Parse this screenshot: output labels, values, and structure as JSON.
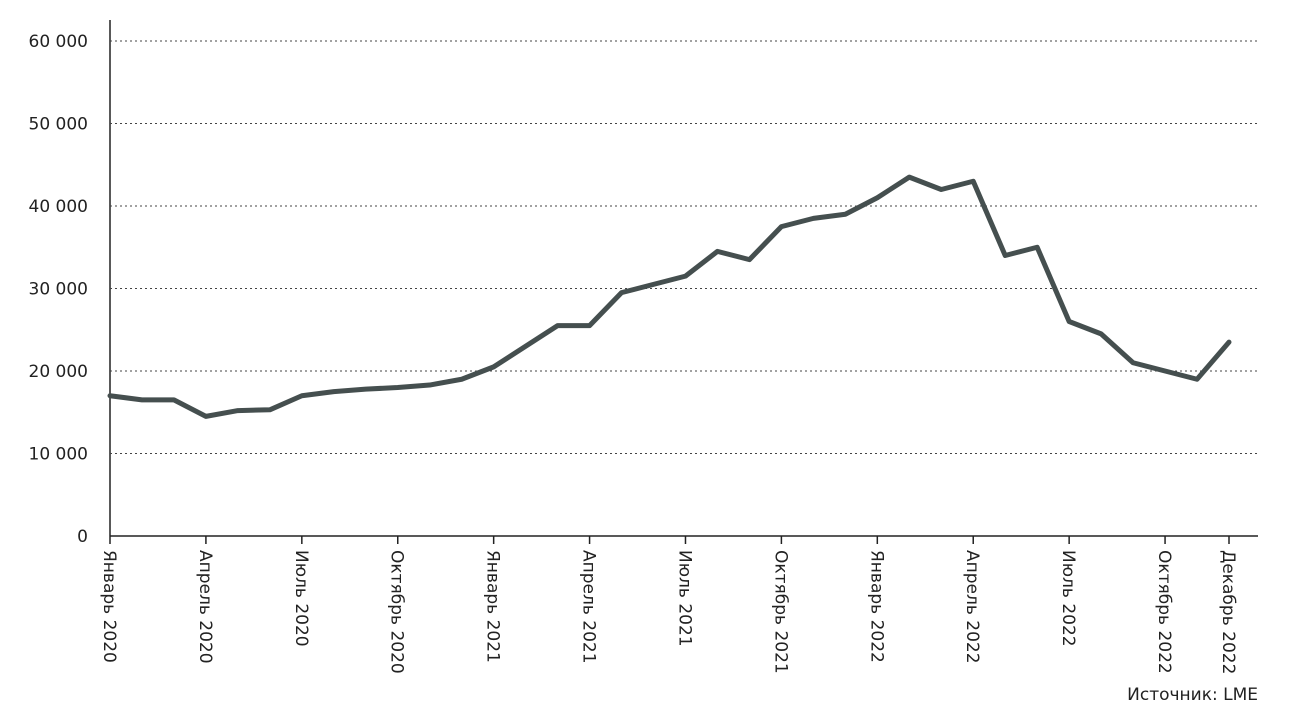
{
  "chart_data": {
    "type": "line",
    "x": [
      "2020-01",
      "2020-02",
      "2020-03",
      "2020-04",
      "2020-05",
      "2020-06",
      "2020-07",
      "2020-08",
      "2020-09",
      "2020-10",
      "2020-11",
      "2020-12",
      "2021-01",
      "2021-02",
      "2021-03",
      "2021-04",
      "2021-05",
      "2021-06",
      "2021-07",
      "2021-08",
      "2021-09",
      "2021-10",
      "2021-11",
      "2021-12",
      "2022-01",
      "2022-02",
      "2022-03",
      "2022-04",
      "2022-05",
      "2022-06",
      "2022-07",
      "2022-08",
      "2022-09",
      "2022-10",
      "2022-11",
      "2022-12"
    ],
    "series": [
      {
        "color": "#454f4f",
        "values": [
          17000,
          16500,
          16500,
          14500,
          15200,
          15300,
          17000,
          17500,
          17800,
          18000,
          18300,
          19000,
          20500,
          23000,
          25500,
          25500,
          29500,
          30500,
          31500,
          34500,
          33500,
          37500,
          38500,
          39000,
          41000,
          43500,
          42000,
          43000,
          34000,
          35000,
          26000,
          24500,
          21000,
          20000,
          19000,
          23500
        ]
      }
    ],
    "xlim": [
      "2020-01",
      "2022-12"
    ],
    "xticks": [
      {
        "value": "2020-01",
        "label": "Январь 2020"
      },
      {
        "value": "2020-04",
        "label": "Апрель 2020"
      },
      {
        "value": "2020-07",
        "label": "Июль 2020"
      },
      {
        "value": "2020-10",
        "label": "Октябрь 2020"
      },
      {
        "value": "2021-01",
        "label": "Январь 2021"
      },
      {
        "value": "2021-04",
        "label": "Апрель 2021"
      },
      {
        "value": "2021-07",
        "label": "Июль 2021"
      },
      {
        "value": "2021-10",
        "label": "Октябрь 2021"
      },
      {
        "value": "2022-01",
        "label": "Январь 2022"
      },
      {
        "value": "2022-04",
        "label": "Апрель 2022"
      },
      {
        "value": "2022-07",
        "label": "Июль 2022"
      },
      {
        "value": "2022-10",
        "label": "Октябрь 2022"
      },
      {
        "value": "2022-12",
        "label": "Декабрь 2022"
      }
    ],
    "ylim": [
      0,
      60000
    ],
    "yticks": [
      0,
      {
        "value": 10000,
        "label": "10 000"
      },
      {
        "value": 20000,
        "label": "20 000"
      },
      {
        "value": 30000,
        "label": "30 000"
      },
      {
        "value": 40000,
        "label": "40 000"
      },
      {
        "value": 50000,
        "label": "50 000"
      },
      {
        "value": 60000,
        "label": "60 000"
      }
    ],
    "grid": true,
    "source": "Источник: LME"
  }
}
